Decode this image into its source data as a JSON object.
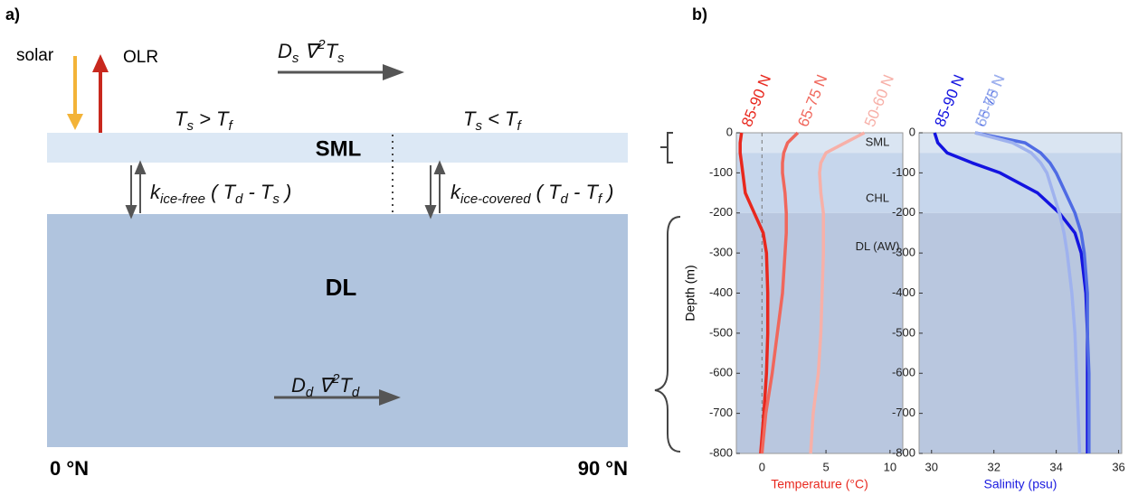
{
  "diagram": {
    "panel_label": "a)",
    "solar": "solar",
    "olr": "OLR",
    "sml": "SML",
    "dl": "DL",
    "lat_start": "0 °N",
    "lat_end": "90 °N",
    "formulas": [
      {
        "parts": [
          {
            "text": "D"
          },
          {
            "text": "s",
            "style": "sub"
          },
          {
            "text": " ∇"
          },
          {
            "text": "2",
            "style": "sup"
          },
          {
            "text": "T"
          },
          {
            "text": "s",
            "style": "sub"
          }
        ]
      },
      {
        "parts": [
          {
            "text": "T"
          },
          {
            "text": "s",
            "style": "sub"
          },
          {
            "text": " > T"
          },
          {
            "text": "f",
            "style": "sub"
          }
        ]
      },
      {
        "parts": [
          {
            "text": "T"
          },
          {
            "text": "s",
            "style": "sub"
          },
          {
            "text": " < T"
          },
          {
            "text": "f",
            "style": "sub"
          }
        ]
      },
      {
        "parts": [
          {
            "text": "k"
          },
          {
            "text": "ice-free",
            "style": "sub"
          },
          {
            "text": " ( T"
          },
          {
            "text": "d",
            "style": "sub"
          },
          {
            "text": " - T"
          },
          {
            "text": "s",
            "style": "sub"
          },
          {
            "text": " )"
          }
        ]
      },
      {
        "parts": [
          {
            "text": "k"
          },
          {
            "text": "ice-covered",
            "style": "sub"
          },
          {
            "text": " ( T"
          },
          {
            "text": "d",
            "style": "sub"
          },
          {
            "text": " - T"
          },
          {
            "text": "f",
            "style": "sub"
          },
          {
            "text": " )"
          }
        ]
      },
      {
        "parts": [
          {
            "text": "D"
          },
          {
            "text": "d",
            "style": "sub"
          },
          {
            "text": " ∇"
          },
          {
            "text": "2",
            "style": "sup"
          },
          {
            "text": "T"
          },
          {
            "text": "d",
            "style": "sub"
          }
        ]
      }
    ]
  },
  "panel_b_label": "b)",
  "chart_data": [
    {
      "type": "line",
      "y_label": "Depth (m)",
      "x_label": "Temperature (°C)",
      "axis_color": "#e8281e",
      "depth": [
        0,
        -25,
        -50,
        -75,
        -100,
        -150,
        -200,
        -250,
        -300,
        -400,
        -500,
        -600,
        -700,
        -800
      ],
      "xlim": [
        -2,
        11
      ],
      "xticks": [
        0,
        5,
        10
      ],
      "ylim": [
        -800,
        0
      ],
      "yticks": [
        0,
        -100,
        -200,
        -300,
        -400,
        -500,
        -600,
        -700,
        -800
      ],
      "vline": 0,
      "layers": [
        {
          "label": "SML",
          "top": 0,
          "bottom": -50
        },
        {
          "label": "CHL",
          "top": -50,
          "bottom": -200
        },
        {
          "label": "DL (AW)",
          "top": -200,
          "bottom": -800
        }
      ],
      "series": [
        {
          "name": "85-90 N",
          "color": "#e8281e",
          "values": [
            -1.6,
            -1.7,
            -1.7,
            -1.6,
            -1.5,
            -1.3,
            -0.6,
            0.1,
            0.35,
            0.45,
            0.45,
            0.35,
            0.15,
            -0.1
          ]
        },
        {
          "name": "65-75 N",
          "color": "#f0675c",
          "values": [
            2.8,
            2.0,
            1.7,
            1.6,
            1.6,
            1.8,
            1.9,
            1.9,
            1.8,
            1.6,
            1.2,
            0.8,
            0.3,
            0.0
          ]
        },
        {
          "name": "50-60 N",
          "color": "#f7b0a8",
          "values": [
            8.0,
            6.5,
            5.0,
            4.6,
            4.5,
            4.6,
            4.8,
            4.8,
            4.8,
            4.7,
            4.6,
            4.4,
            4.0,
            3.8
          ]
        }
      ]
    },
    {
      "type": "line",
      "x_label": "Salinity (psu)",
      "axis_color": "#1a1ae0",
      "depth": [
        0,
        -25,
        -50,
        -75,
        -100,
        -150,
        -200,
        -250,
        -300,
        -400,
        -500,
        -600,
        -700,
        -800
      ],
      "xlim": [
        29.6,
        36.1
      ],
      "xticks": [
        30,
        32,
        34,
        36
      ],
      "ylim": [
        -800,
        0
      ],
      "yticks": [
        0,
        -100,
        -200,
        -300,
        -400,
        -500,
        -600,
        -700,
        -800
      ],
      "layers": [
        {
          "top": 0,
          "bottom": -50
        },
        {
          "top": -50,
          "bottom": -200
        },
        {
          "top": -200,
          "bottom": -800
        }
      ],
      "series": [
        {
          "name": "85-90 N",
          "color": "#1414e0",
          "values": [
            30.1,
            30.2,
            30.5,
            31.3,
            32.2,
            33.4,
            34.1,
            34.6,
            34.8,
            34.95,
            35.0,
            35.0,
            35.0,
            35.0
          ]
        },
        {
          "name": "65-75 N",
          "color": "#4f6be4",
          "values": [
            31.4,
            33.0,
            33.5,
            33.8,
            34.0,
            34.3,
            34.6,
            34.8,
            34.9,
            35.0,
            35.0,
            35.05,
            35.05,
            35.05
          ]
        },
        {
          "name": "50-60 N",
          "color": "#9fb2ee",
          "values": [
            31.4,
            32.6,
            33.2,
            33.5,
            33.7,
            33.9,
            34.1,
            34.25,
            34.35,
            34.5,
            34.6,
            34.65,
            34.7,
            34.75
          ]
        }
      ]
    }
  ]
}
